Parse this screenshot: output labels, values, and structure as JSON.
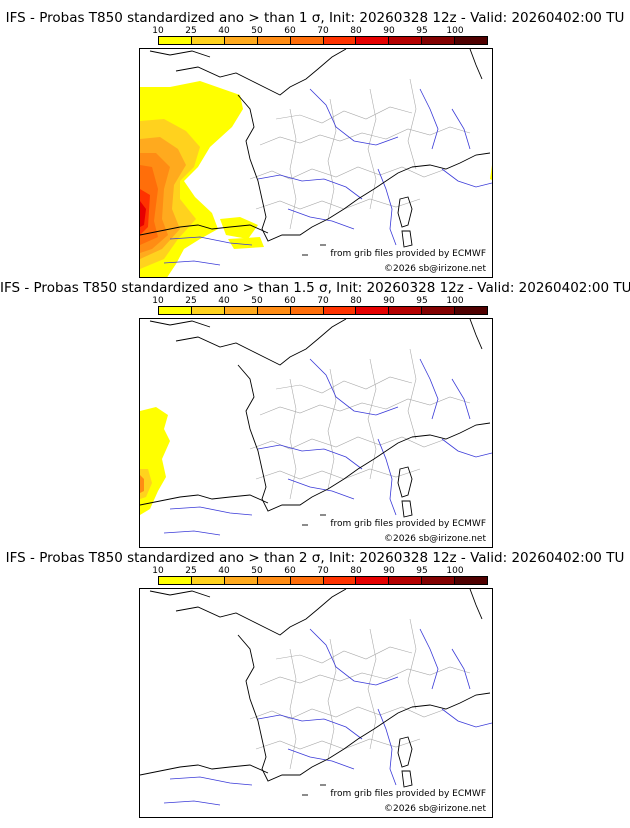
{
  "panels": [
    {
      "title": "IFS - Probas T850  standardized ano > than 1 σ, Init: 20260328 12z - Valid: 20260402:00 TU",
      "anomaly_level": "1 σ"
    },
    {
      "title": "IFS - Probas T850  standardized ano > than 1.5 σ, Init: 20260328 12z - Valid: 20260402:00 TU",
      "anomaly_level": "1.5 σ"
    },
    {
      "title": "IFS - Probas T850  standardized ano > than 2 σ, Init: 20260328 12z - Valid: 20260402:00 TU",
      "anomaly_level": "2 σ"
    }
  ],
  "colorbar": {
    "ticks": [
      "10",
      "25",
      "40",
      "50",
      "60",
      "70",
      "80",
      "90",
      "95",
      "100"
    ],
    "colors": [
      "#ffff00",
      "#ffd21e",
      "#ffaa1e",
      "#ff8c14",
      "#ff6e0a",
      "#ff3200",
      "#e60000",
      "#b40000",
      "#820000",
      "#500000"
    ]
  },
  "credits": {
    "source": "from grib files provided by ECMWF",
    "copyright": "©2026 sb@irizone.net"
  },
  "style": {
    "coast_color": "#000000",
    "river_color": "#3a3ad8",
    "border_color": "#aaaaaa"
  }
}
